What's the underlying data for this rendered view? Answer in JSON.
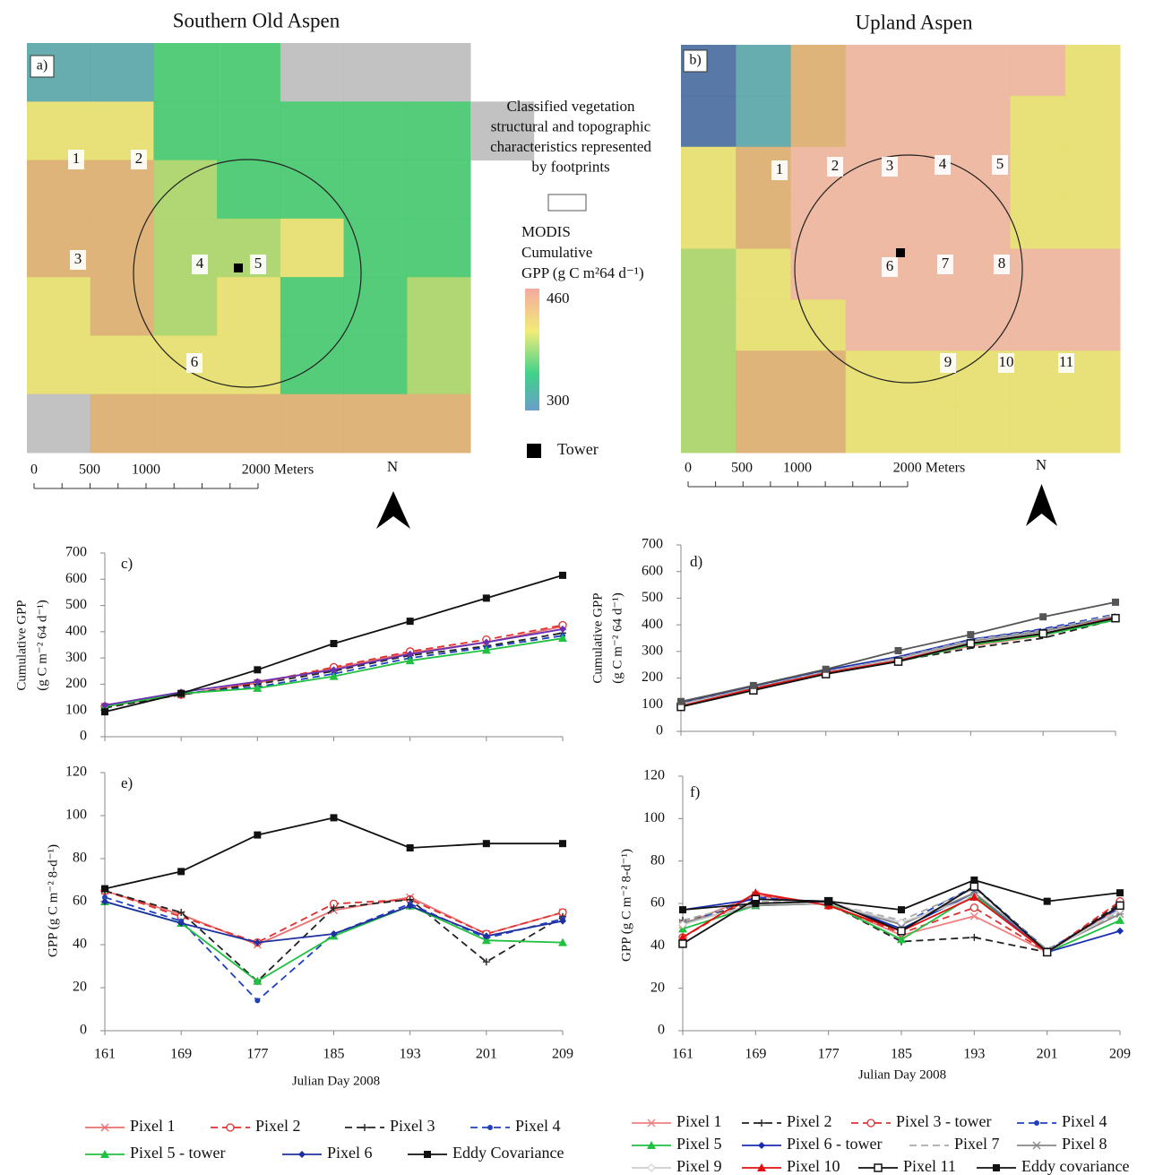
{
  "maps": [
    {
      "title": "Southern Old Aspen",
      "panel": "a)",
      "pixel_labels": [
        "1",
        "2",
        "3",
        "4",
        "5",
        "6"
      ],
      "scale_labels": [
        "0",
        "500",
        "1000",
        "2000 Meters"
      ],
      "north": "N"
    },
    {
      "title": "Upland Aspen",
      "panel": "b)",
      "pixel_labels": [
        "1",
        "2",
        "3",
        "4",
        "5",
        "6",
        "7",
        "8",
        "9",
        "10",
        "11"
      ],
      "scale_labels": [
        "0",
        "500",
        "1000",
        "2000 Meters"
      ],
      "north": "N"
    }
  ],
  "map_legend": {
    "footprint_lines": [
      "Classified vegetation",
      "structural and topographic",
      "characteristics represented",
      "by footprints"
    ],
    "modis_lines": [
      "MODIS",
      "Cumulative",
      "GPP (g C m²64 d⁻¹)"
    ],
    "colorbar_labels": [
      460,
      300
    ],
    "tower": "Tower"
  },
  "chart_data": [
    {
      "type": "line",
      "panel": "c)",
      "ylabel": [
        "Cumulative GPP",
        "(g C m⁻² 64 d⁻¹)"
      ],
      "x": [
        161,
        169,
        177,
        185,
        193,
        201,
        209
      ],
      "xlim": [
        161,
        209
      ],
      "ylim": [
        0,
        700
      ],
      "yticks": [
        0,
        100,
        200,
        300,
        400,
        500,
        600,
        700
      ],
      "series": [
        {
          "color": "#e87070",
          "marker": "x",
          "dash": false,
          "values": [
            115,
            160,
            205,
            260,
            320,
            360,
            420
          ]
        },
        {
          "color": "#e03030",
          "marker": "circle-open",
          "dash": true,
          "values": [
            115,
            160,
            205,
            265,
            325,
            370,
            425
          ]
        },
        {
          "color": "#222222",
          "marker": "plus",
          "dash": true,
          "values": [
            110,
            160,
            200,
            250,
            310,
            345,
            395
          ]
        },
        {
          "color": "#2040c0",
          "marker": "dot",
          "dash": true,
          "values": [
            120,
            165,
            190,
            240,
            300,
            340,
            385
          ]
        },
        {
          "color": "#20c040",
          "marker": "triangle",
          "dash": false,
          "values": [
            115,
            165,
            185,
            230,
            290,
            330,
            375
          ]
        },
        {
          "color": "#6a30b0",
          "marker": "diamond",
          "dash": false,
          "values": [
            120,
            170,
            210,
            255,
            315,
            360,
            410
          ]
        },
        {
          "color": "#111111",
          "marker": "square",
          "dash": false,
          "values": [
            95,
            165,
            255,
            355,
            440,
            528,
            615
          ]
        }
      ]
    },
    {
      "type": "line",
      "panel": "d)",
      "ylabel": [
        "Cumulative GPP",
        "(g C m⁻² 64 d⁻¹)"
      ],
      "x": [
        161,
        169,
        177,
        185,
        193,
        201,
        209
      ],
      "xlim": [
        161,
        209
      ],
      "ylim": [
        0,
        700
      ],
      "yticks": [
        0,
        100,
        200,
        300,
        400,
        500,
        600,
        700
      ],
      "series": [
        {
          "color": "#f08080",
          "marker": "none",
          "dash": false,
          "values": [
            100,
            160,
            220,
            268,
            320,
            360,
            425
          ]
        },
        {
          "color": "#222222",
          "marker": "none",
          "dash": true,
          "values": [
            102,
            162,
            222,
            265,
            312,
            350,
            420
          ]
        },
        {
          "color": "#e03030",
          "marker": "none",
          "dash": true,
          "values": [
            96,
            160,
            220,
            268,
            330,
            370,
            435
          ]
        },
        {
          "color": "#2040c0",
          "marker": "none",
          "dash": true,
          "values": [
            100,
            163,
            223,
            275,
            345,
            385,
            440
          ]
        },
        {
          "color": "#20c040",
          "marker": "none",
          "dash": false,
          "values": [
            98,
            157,
            217,
            262,
            325,
            362,
            418
          ]
        },
        {
          "color": "#1a2fb0",
          "marker": "none",
          "dash": false,
          "values": [
            108,
            170,
            230,
            280,
            345,
            382,
            430
          ]
        },
        {
          "color": "#aaaaaa",
          "marker": "none",
          "dash": true,
          "values": [
            104,
            164,
            224,
            276,
            343,
            380,
            437
          ]
        },
        {
          "color": "#888888",
          "marker": "none",
          "dash": false,
          "values": [
            103,
            162,
            222,
            272,
            337,
            375,
            430
          ]
        },
        {
          "color": "#cccccc",
          "marker": "none",
          "dash": false,
          "values": [
            100,
            160,
            220,
            270,
            333,
            370,
            427
          ]
        },
        {
          "color": "#e01010",
          "marker": "none",
          "dash": false,
          "values": [
            95,
            160,
            219,
            266,
            330,
            367,
            427
          ]
        },
        {
          "color": "#111111",
          "marker": "square-open",
          "dash": false,
          "values": [
            92,
            154,
            215,
            262,
            330,
            367,
            425
          ]
        },
        {
          "color": "#555555",
          "marker": "square",
          "dash": false,
          "values": [
            112,
            172,
            233,
            303,
            363,
            430,
            485
          ]
        }
      ]
    },
    {
      "type": "line",
      "panel": "e)",
      "ylabel": [
        "GPP (g C m⁻² 8-d⁻¹)"
      ],
      "xlabel": "Julian Day 2008",
      "x": [
        161,
        169,
        177,
        185,
        193,
        201,
        209
      ],
      "xlim": [
        161,
        209
      ],
      "xticks": [
        161,
        169,
        177,
        185,
        193,
        201,
        209
      ],
      "ylim": [
        0,
        120
      ],
      "yticks": [
        0,
        20,
        40,
        60,
        80,
        100,
        120
      ],
      "series": [
        {
          "name": "Pixel 1",
          "color": "#e87070",
          "marker": "x",
          "dash": false,
          "values": [
            65,
            54,
            40,
            56,
            62,
            45,
            55
          ]
        },
        {
          "name": "Pixel 2",
          "color": "#e03030",
          "marker": "circle-open",
          "dash": true,
          "values": [
            65,
            53,
            41,
            59,
            61,
            45,
            55
          ]
        },
        {
          "name": "Pixel 3",
          "color": "#222222",
          "marker": "plus",
          "dash": true,
          "values": [
            65,
            55,
            23,
            57,
            61,
            32,
            53
          ]
        },
        {
          "name": "Pixel 4",
          "color": "#2040c0",
          "marker": "dot",
          "dash": true,
          "values": [
            62,
            51,
            14,
            45,
            59,
            43,
            52
          ]
        },
        {
          "name": "Pixel 5 - tower",
          "color": "#20c040",
          "marker": "triangle",
          "dash": false,
          "values": [
            60,
            50,
            23,
            44,
            58,
            42,
            41
          ]
        },
        {
          "name": "Pixel 6",
          "color": "#2030a0",
          "marker": "diamond",
          "dash": false,
          "values": [
            60,
            50,
            41,
            45,
            58,
            44,
            51
          ]
        },
        {
          "name": "Eddy Covariance",
          "color": "#111111",
          "marker": "square",
          "dash": false,
          "values": [
            66,
            74,
            91,
            99,
            85,
            87,
            87
          ]
        }
      ]
    },
    {
      "type": "line",
      "panel": "f)",
      "ylabel": [
        "GPP (g C m⁻² 8-d⁻¹)"
      ],
      "xlabel": "Julian Day 2008",
      "x": [
        161,
        169,
        177,
        185,
        193,
        201,
        209
      ],
      "xlim": [
        161,
        209
      ],
      "xticks": [
        161,
        169,
        177,
        185,
        193,
        201,
        209
      ],
      "ylim": [
        0,
        120
      ],
      "yticks": [
        0,
        20,
        40,
        60,
        80,
        100,
        120
      ],
      "series": [
        {
          "name": "Pixel 1",
          "color": "#f08080",
          "marker": "x",
          "dash": false,
          "values": [
            50,
            64,
            60,
            45,
            54,
            37,
            58
          ]
        },
        {
          "name": "Pixel 2",
          "color": "#222222",
          "marker": "plus",
          "dash": true,
          "values": [
            52,
            60,
            60,
            42,
            44,
            37,
            60
          ]
        },
        {
          "name": "Pixel 3 - tower",
          "color": "#e03030",
          "marker": "circle-open",
          "dash": true,
          "values": [
            44,
            64,
            59,
            46,
            58,
            37,
            61
          ]
        },
        {
          "name": "Pixel 4",
          "color": "#2040c0",
          "marker": "dot",
          "dash": true,
          "values": [
            50,
            63,
            60,
            50,
            68,
            38,
            58
          ]
        },
        {
          "name": "Pixel 5",
          "color": "#20c040",
          "marker": "triangle",
          "dash": false,
          "values": [
            48,
            59,
            60,
            43,
            64,
            37,
            52
          ]
        },
        {
          "name": "Pixel 6 - tower",
          "color": "#1a2fb0",
          "marker": "diamond",
          "dash": false,
          "values": [
            57,
            62,
            61,
            48,
            65,
            37,
            47
          ]
        },
        {
          "name": "Pixel 7",
          "color": "#aaaaaa",
          "marker": "none",
          "dash": true,
          "values": [
            52,
            61,
            60,
            52,
            67,
            38,
            56
          ]
        },
        {
          "name": "Pixel 8",
          "color": "#888888",
          "marker": "star",
          "dash": false,
          "values": [
            51,
            59,
            60,
            50,
            65,
            38,
            55
          ]
        },
        {
          "name": "Pixel 9",
          "color": "#cccccc",
          "marker": "diamond-open",
          "dash": false,
          "values": [
            50,
            60,
            60,
            51,
            63,
            37,
            57
          ]
        },
        {
          "name": "Pixel 10",
          "color": "#e01010",
          "marker": "triangle",
          "dash": false,
          "values": [
            44,
            65,
            59,
            47,
            63,
            37,
            59
          ]
        },
        {
          "name": "Pixel 11",
          "color": "#111111",
          "marker": "square-open",
          "dash": false,
          "values": [
            41,
            62,
            61,
            47,
            68,
            37,
            59
          ]
        },
        {
          "name": "Eddy covariance",
          "color": "#111111",
          "marker": "square",
          "dash": false,
          "values": [
            57,
            60,
            61,
            57,
            71,
            61,
            65
          ]
        }
      ]
    }
  ]
}
